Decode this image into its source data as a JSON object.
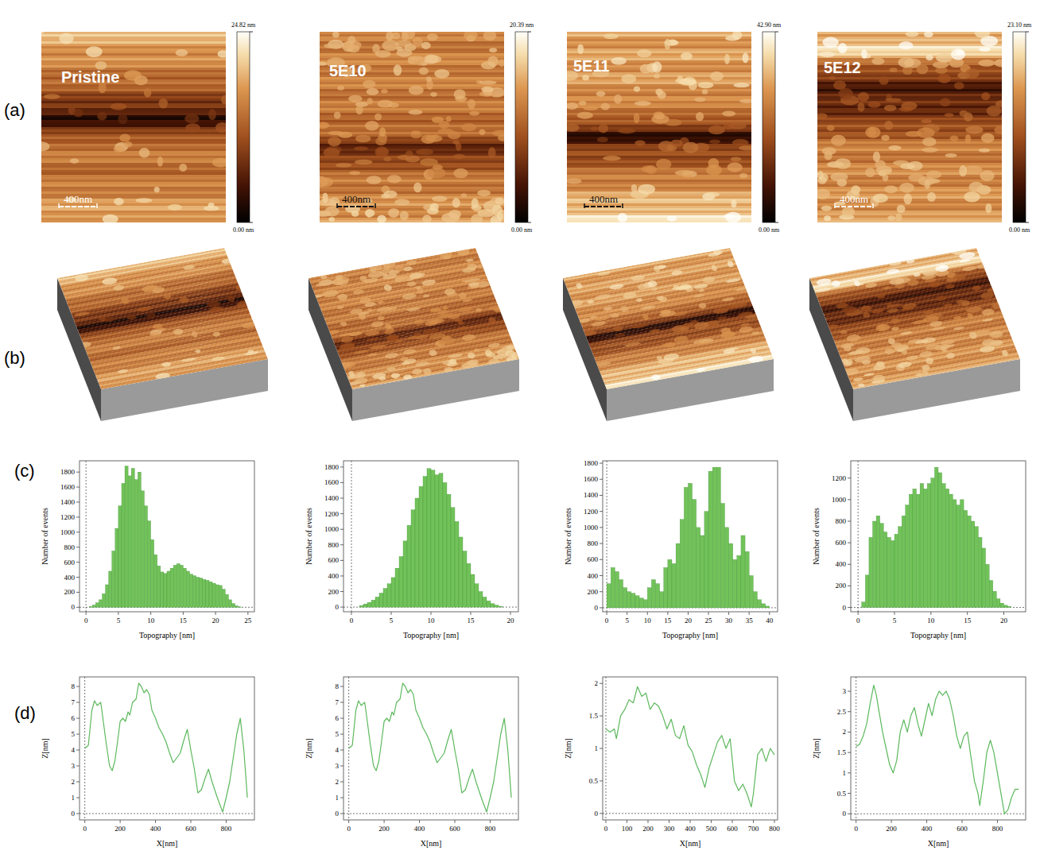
{
  "row_labels": [
    "(a)",
    "(b)",
    "(c)",
    "(d)"
  ],
  "samples": [
    {
      "label": "Pristine",
      "scale_bar": "400nm",
      "colorbar": {
        "range": [
          0,
          24.82
        ],
        "ticks": [
          {
            "value": 0,
            "label": "0.00 nm"
          },
          {
            "value": 24.82,
            "label": "24.82 nm"
          }
        ]
      }
    },
    {
      "label": "5E10",
      "scale_bar": "400nm",
      "colorbar": {
        "range": [
          0,
          20.39
        ],
        "ticks": [
          {
            "value": 0,
            "label": "0.00 nm"
          },
          {
            "value": 20.39,
            "label": "20.39 nm"
          }
        ]
      }
    },
    {
      "label": "5E11",
      "scale_bar": "400nm",
      "colorbar": {
        "range": [
          0,
          42.9
        ],
        "ticks": [
          {
            "value": 0,
            "label": "0.00 nm"
          },
          {
            "value": 42.9,
            "label": "42.90 nm"
          }
        ]
      }
    },
    {
      "label": "5E12",
      "scale_bar": "400nm",
      "colorbar": {
        "range": [
          0,
          23.1
        ],
        "ticks": [
          {
            "value": 0,
            "label": "0.00 nm"
          },
          {
            "value": 23.1,
            "label": "23.10 nm"
          }
        ]
      }
    }
  ],
  "chart_data": [
    {
      "type": "histogram",
      "x_label": "Topography [nm]",
      "y_label": "Number of events",
      "color": "#72c25a",
      "bins": [
        0.5,
        1,
        1.5,
        2,
        2.5,
        3,
        3.5,
        4,
        4.5,
        5,
        5.5,
        6,
        6.5,
        7,
        7.5,
        8,
        8.5,
        9,
        9.5,
        10,
        10.5,
        11,
        11.5,
        12,
        12.5,
        13,
        13.5,
        14,
        14.5,
        15,
        15.5,
        16,
        16.5,
        17,
        17.5,
        18,
        18.5,
        19,
        19.5,
        20,
        20.5,
        21,
        21.5,
        22,
        22.5,
        23,
        23.5,
        24
      ],
      "values": [
        10,
        30,
        60,
        100,
        180,
        300,
        480,
        750,
        1050,
        1350,
        1650,
        1880,
        1750,
        1850,
        1700,
        1800,
        1550,
        1350,
        1150,
        900,
        700,
        550,
        470,
        450,
        480,
        520,
        560,
        580,
        560,
        520,
        480,
        440,
        420,
        400,
        390,
        370,
        360,
        340,
        320,
        300,
        290,
        240,
        170,
        100,
        50,
        20,
        5
      ],
      "xlim": [
        -1,
        26
      ],
      "xticks": [
        0,
        5,
        10,
        15,
        20,
        25
      ],
      "ylim": [
        -60,
        1950
      ],
      "yticks": [
        0,
        200,
        400,
        600,
        800,
        1000,
        1200,
        1400,
        1600,
        1800
      ]
    },
    {
      "type": "histogram",
      "x_label": "Topography [nm]",
      "y_label": "Number of events",
      "color": "#72c25a",
      "bins": [
        1,
        1.5,
        2,
        2.5,
        3,
        3.5,
        4,
        4.5,
        5,
        5.5,
        6,
        6.5,
        7,
        7.5,
        8,
        8.5,
        9,
        9.5,
        10,
        10.5,
        11,
        11.5,
        12,
        12.5,
        13,
        13.5,
        14,
        14.5,
        15,
        15.5,
        16,
        16.5,
        17,
        17.5,
        18,
        18.5,
        19
      ],
      "values": [
        20,
        40,
        60,
        90,
        130,
        180,
        240,
        300,
        380,
        500,
        650,
        850,
        1050,
        1250,
        1400,
        1550,
        1680,
        1780,
        1760,
        1700,
        1720,
        1600,
        1450,
        1280,
        1100,
        900,
        720,
        560,
        420,
        300,
        200,
        130,
        80,
        45,
        25,
        10
      ],
      "xlim": [
        -1,
        21
      ],
      "xticks": [
        0,
        5,
        10,
        15,
        20
      ],
      "ylim": [
        -60,
        1880
      ],
      "yticks": [
        0,
        200,
        400,
        600,
        800,
        1000,
        1200,
        1400,
        1600,
        1800
      ]
    },
    {
      "type": "histogram",
      "x_label": "Topography [nm]",
      "y_label": "Number of events",
      "color": "#72c25a",
      "bins": [
        0,
        1,
        2,
        3,
        4,
        5,
        6,
        7,
        8,
        9,
        10,
        11,
        12,
        13,
        14,
        15,
        16,
        17,
        18,
        19,
        20,
        21,
        22,
        23,
        24,
        25,
        26,
        27,
        28,
        29,
        30,
        31,
        32,
        33,
        34,
        35,
        36,
        37,
        38,
        39,
        40
      ],
      "values": [
        300,
        500,
        450,
        350,
        250,
        200,
        180,
        150,
        120,
        100,
        250,
        350,
        300,
        200,
        500,
        600,
        550,
        800,
        1100,
        1500,
        1550,
        1350,
        1000,
        900,
        1200,
        1700,
        1750,
        1750,
        1300,
        1000,
        800,
        600,
        650,
        900,
        700,
        400,
        200,
        100,
        50,
        20
      ],
      "xlim": [
        -1,
        42
      ],
      "xticks": [
        0,
        5,
        10,
        15,
        20,
        25,
        30,
        35,
        40
      ],
      "ylim": [
        -50,
        1830
      ],
      "yticks": [
        0,
        200,
        400,
        600,
        800,
        1000,
        1200,
        1400,
        1600,
        1800
      ]
    },
    {
      "type": "histogram",
      "x_label": "Topography [nm]",
      "y_label": "Number of events",
      "color": "#72c25a",
      "bins": [
        0.5,
        1,
        1.5,
        2,
        2.5,
        3,
        3.5,
        4,
        4.5,
        5,
        5.5,
        6,
        6.5,
        7,
        7.5,
        8,
        8.5,
        9,
        9.5,
        10,
        10.5,
        11,
        11.5,
        12,
        12.5,
        13,
        13.5,
        14,
        14.5,
        15,
        15.5,
        16,
        16.5,
        17,
        17.5,
        18,
        18.5,
        19,
        19.5,
        20,
        20.5,
        21
      ],
      "values": [
        50,
        300,
        650,
        800,
        850,
        780,
        700,
        650,
        620,
        680,
        750,
        850,
        950,
        1050,
        1100,
        1050,
        1150,
        1100,
        1150,
        1200,
        1300,
        1250,
        1150,
        1100,
        1050,
        1000,
        950,
        1000,
        900,
        850,
        800,
        750,
        650,
        550,
        400,
        250,
        150,
        80,
        40,
        20,
        10
      ],
      "xlim": [
        -1,
        23
      ],
      "xticks": [
        0,
        5,
        10,
        15,
        20
      ],
      "ylim": [
        -40,
        1360
      ],
      "yticks": [
        0,
        200,
        400,
        600,
        800,
        1000,
        1200
      ]
    },
    {
      "type": "line",
      "x_label": "X[nm]",
      "y_label": "Z[nm]",
      "color": "#5cb85c",
      "x": [
        0,
        20,
        40,
        55,
        70,
        90,
        100,
        120,
        140,
        155,
        170,
        185,
        200,
        215,
        230,
        245,
        255,
        270,
        290,
        305,
        320,
        335,
        350,
        365,
        380,
        400,
        420,
        440,
        460,
        480,
        500,
        520,
        540,
        560,
        580,
        600,
        620,
        640,
        660,
        680,
        700,
        720,
        750,
        780,
        800,
        820,
        840,
        860,
        880,
        900,
        920
      ],
      "values": [
        4.1,
        4.3,
        6.5,
        7.1,
        6.8,
        7.0,
        6.2,
        4.5,
        3.0,
        2.7,
        3.3,
        4.5,
        5.8,
        6.0,
        5.8,
        6.4,
        6.2,
        7.0,
        7.2,
        8.2,
        8.0,
        7.6,
        7.8,
        7.5,
        6.5,
        6.0,
        5.4,
        5.0,
        4.5,
        3.8,
        3.2,
        3.5,
        3.8,
        4.6,
        5.3,
        4.0,
        2.8,
        1.3,
        1.5,
        2.2,
        2.8,
        2.0,
        1.0,
        0.1,
        1.0,
        2.0,
        3.5,
        5.0,
        6.0,
        4.0,
        1.0
      ],
      "xlim": [
        -30,
        960
      ],
      "xticks": [
        0,
        200,
        400,
        600,
        800
      ],
      "ylim": [
        -0.4,
        8.6
      ],
      "yticks": [
        0,
        1,
        2,
        3,
        4,
        5,
        6,
        7,
        8
      ]
    },
    {
      "type": "line",
      "x_label": "X[nm]",
      "y_label": "Z[nm]",
      "color": "#5cb85c",
      "x": [
        0,
        20,
        40,
        55,
        70,
        90,
        100,
        120,
        140,
        155,
        170,
        185,
        200,
        215,
        230,
        245,
        255,
        270,
        290,
        305,
        320,
        335,
        350,
        365,
        380,
        400,
        420,
        440,
        460,
        480,
        500,
        520,
        540,
        560,
        580,
        600,
        620,
        640,
        660,
        680,
        700,
        720,
        750,
        780,
        800,
        820,
        840,
        860,
        880,
        900,
        920
      ],
      "values": [
        4.1,
        4.3,
        6.5,
        7.1,
        6.8,
        7.0,
        6.2,
        4.5,
        3.0,
        2.7,
        3.3,
        4.5,
        5.8,
        6.0,
        5.8,
        6.4,
        6.2,
        7.0,
        7.2,
        8.2,
        8.0,
        7.6,
        7.8,
        7.5,
        6.5,
        6.0,
        5.4,
        5.0,
        4.5,
        3.8,
        3.2,
        3.5,
        3.8,
        4.6,
        5.3,
        4.0,
        2.8,
        1.3,
        1.5,
        2.2,
        2.8,
        2.0,
        1.0,
        0.1,
        1.0,
        2.0,
        3.5,
        5.0,
        6.0,
        4.0,
        1.0
      ],
      "xlim": [
        -30,
        960
      ],
      "xticks": [
        0,
        200,
        400,
        600,
        800
      ],
      "ylim": [
        -0.4,
        8.6
      ],
      "yticks": [
        0,
        1,
        2,
        3,
        4,
        5,
        6,
        7,
        8
      ]
    },
    {
      "type": "line",
      "x_label": "X[nm]",
      "y_label": "Z[nm]",
      "color": "#5cb85c",
      "x": [
        0,
        20,
        40,
        50,
        70,
        90,
        110,
        130,
        150,
        170,
        190,
        210,
        230,
        250,
        270,
        290,
        310,
        330,
        350,
        370,
        390,
        410,
        430,
        450,
        470,
        490,
        510,
        530,
        550,
        570,
        590,
        610,
        630,
        650,
        670,
        690,
        700,
        720,
        740,
        760,
        780,
        800
      ],
      "values": [
        1.3,
        1.25,
        1.3,
        1.15,
        1.5,
        1.6,
        1.75,
        1.7,
        1.95,
        1.8,
        1.85,
        1.6,
        1.7,
        1.65,
        1.5,
        1.3,
        1.45,
        1.2,
        1.15,
        1.35,
        1.05,
        0.95,
        0.75,
        0.6,
        0.4,
        0.7,
        0.9,
        1.1,
        1.2,
        1.0,
        1.15,
        0.5,
        0.35,
        0.45,
        0.3,
        0.1,
        0.3,
        0.9,
        1.0,
        0.8,
        1.0,
        0.9
      ],
      "xlim": [
        -15,
        815
      ],
      "xticks": [
        0,
        100,
        200,
        300,
        400,
        500,
        600,
        700,
        800
      ],
      "ylim": [
        -0.1,
        2.1
      ],
      "yticks": [
        0,
        0.5,
        1,
        1.5,
        2
      ]
    },
    {
      "type": "line",
      "x_label": "X[nm]",
      "y_label": "Z[nm]",
      "color": "#5cb85c",
      "x": [
        0,
        20,
        40,
        60,
        80,
        100,
        115,
        130,
        150,
        170,
        190,
        210,
        230,
        250,
        270,
        290,
        310,
        330,
        350,
        370,
        390,
        410,
        430,
        450,
        470,
        490,
        510,
        530,
        550,
        570,
        590,
        610,
        630,
        650,
        670,
        690,
        700,
        720,
        740,
        760,
        780,
        800,
        820,
        840,
        860,
        880,
        900,
        920
      ],
      "values": [
        1.65,
        1.7,
        1.9,
        2.2,
        2.7,
        3.15,
        2.9,
        2.5,
        2.0,
        1.6,
        1.2,
        1.0,
        1.3,
        2.0,
        2.3,
        2.0,
        2.4,
        2.6,
        2.2,
        1.9,
        2.3,
        2.7,
        2.4,
        2.8,
        3.0,
        2.9,
        3.0,
        2.8,
        2.4,
        1.9,
        1.6,
        1.9,
        2.0,
        1.4,
        0.8,
        0.5,
        0.2,
        0.8,
        1.5,
        1.8,
        1.5,
        1.0,
        0.5,
        0.0,
        0.1,
        0.4,
        0.6,
        0.6
      ],
      "xlim": [
        -30,
        960
      ],
      "xticks": [
        0,
        200,
        400,
        600,
        800
      ],
      "ylim": [
        -0.15,
        3.35
      ],
      "yticks": [
        0,
        0.5,
        1,
        1.5,
        2,
        2.5,
        3
      ]
    }
  ]
}
